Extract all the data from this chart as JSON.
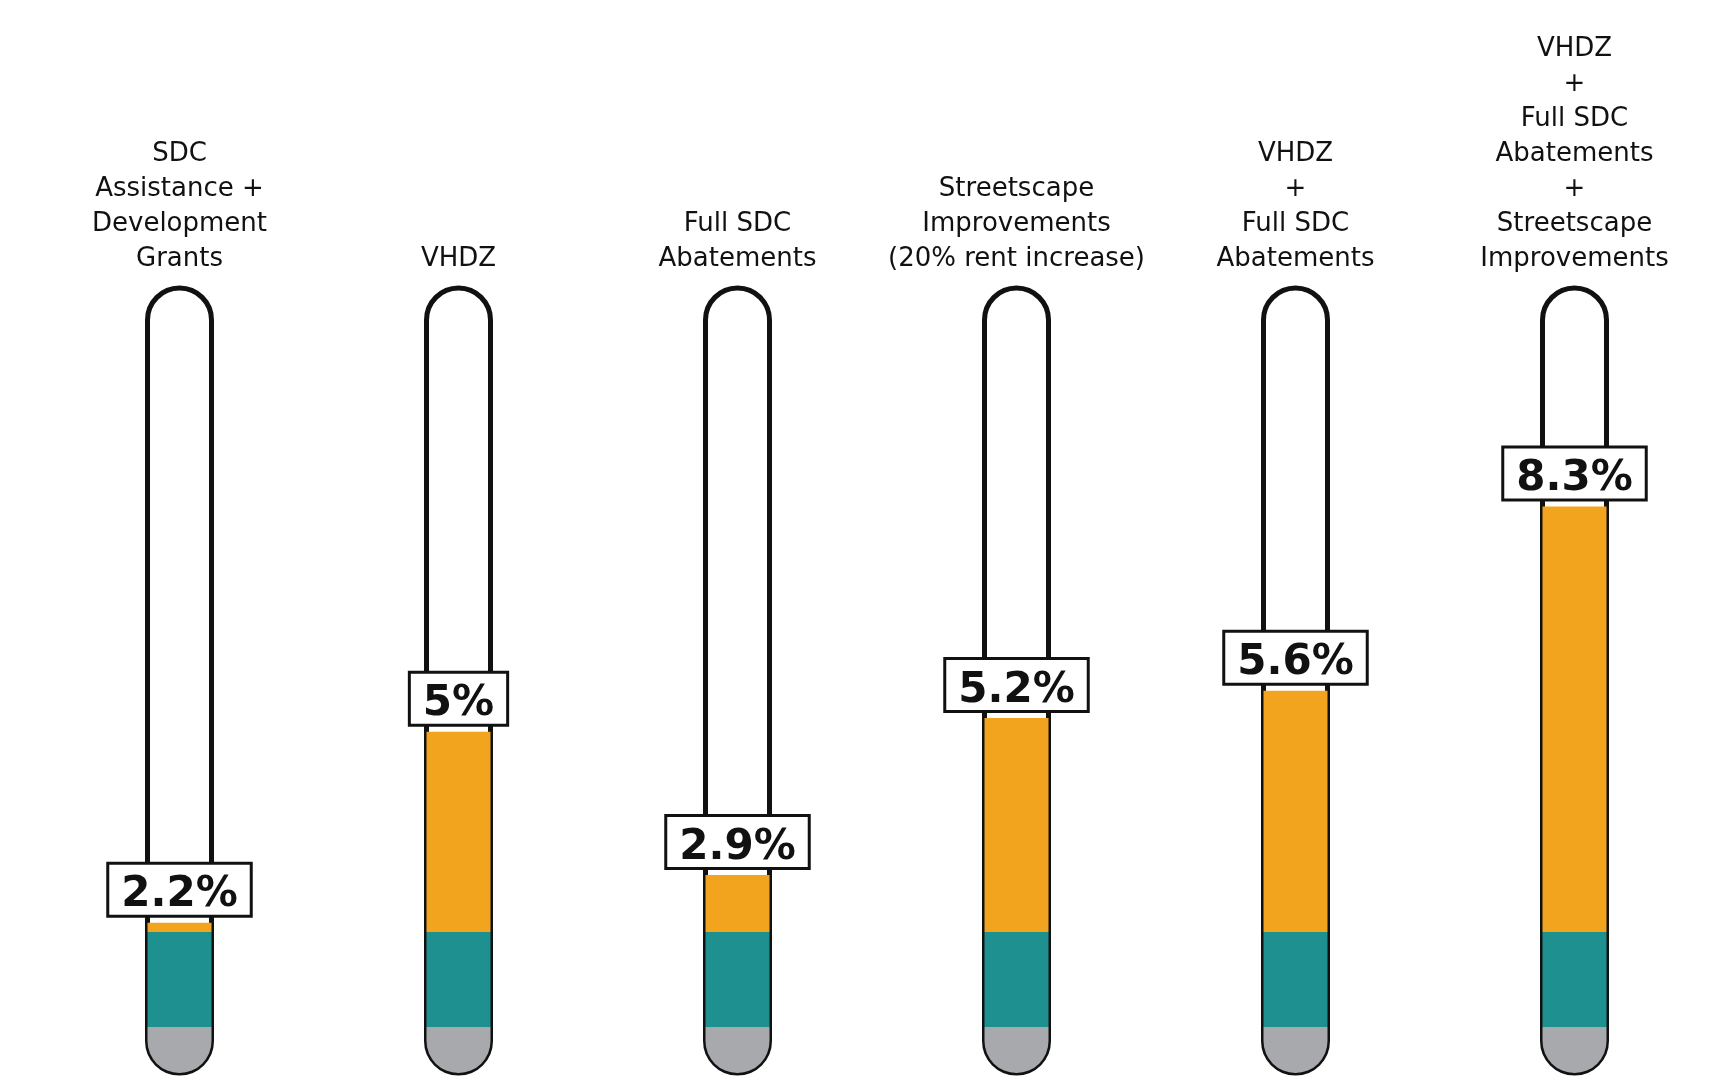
{
  "chart_data": {
    "type": "bar",
    "tick_labels": "x",
    "categories": [
      "SDC\nAssistance +\nDevelopment\nGrants",
      "VHDZ",
      "Full SDC\nAbatements",
      "Streetscape\nImprovements\n(20% rent increase)",
      "VHDZ\n+\nFull SDC\nAbatements",
      "VHDZ\n+\nFull SDC\nAbatements\n+\nStreetscape\nImprovements"
    ],
    "series": [
      {
        "color": "#f2a41f",
        "values": [
          2.2,
          5,
          2.9,
          5.2,
          5.6,
          8.3
        ],
        "value_labels": [
          "2.2%",
          "5%",
          "2.9%",
          "5.2%",
          "5.6%",
          "8.3%"
        ]
      }
    ]
  }
}
